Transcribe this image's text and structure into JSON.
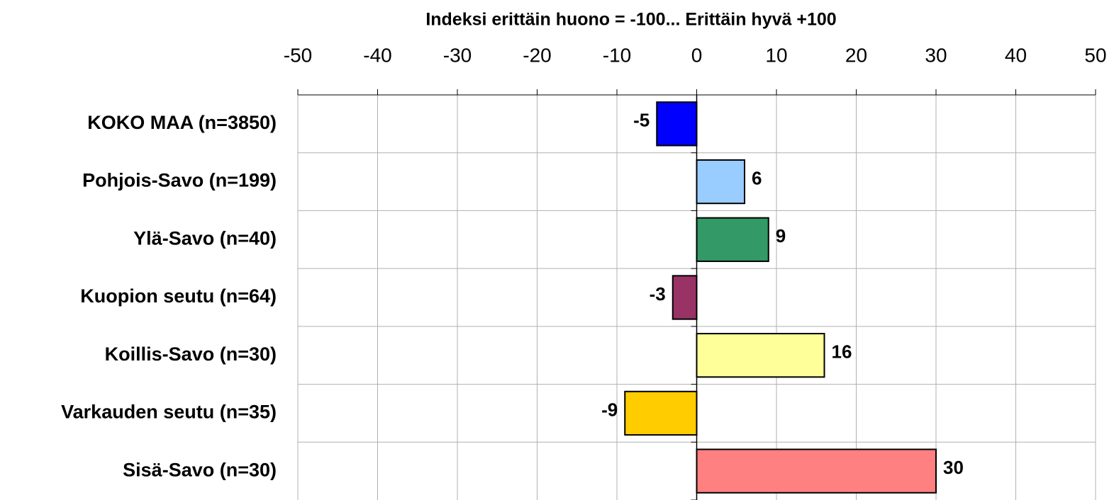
{
  "chart_data": {
    "type": "barh",
    "title": "Indeksi erittäin huono = -100... Erittäin hyvä +100",
    "categories": [
      "KOKO MAA (n=3850)",
      "Pohjois-Savo (n=199)",
      "Ylä-Savo (n=40)",
      "Kuopion seutu (n=64)",
      "Koillis-Savo (n=30)",
      "Varkauden seutu (n=35)",
      "Sisä-Savo (n=30)"
    ],
    "values": [
      -5,
      6,
      9,
      -3,
      16,
      -9,
      30
    ],
    "colors": [
      "#0000ff",
      "#99ccff",
      "#339966",
      "#993366",
      "#ffff99",
      "#ffcc00",
      "#ff8080"
    ],
    "xlim": [
      -50,
      50
    ],
    "xticks": [
      -50,
      -40,
      -30,
      -20,
      -10,
      0,
      10,
      20,
      30,
      40,
      50
    ],
    "grid": true
  }
}
